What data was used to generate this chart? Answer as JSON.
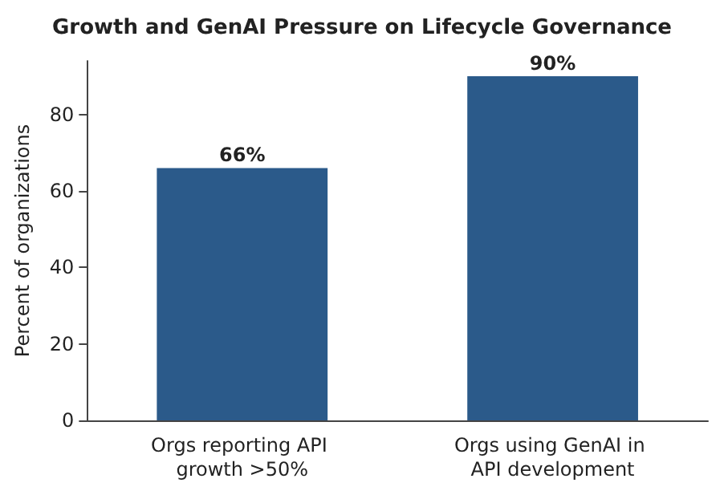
{
  "chart_data": {
    "type": "bar",
    "title": "Growth and GenAI Pressure on Lifecycle Governance",
    "ylabel": "Percent of organizations",
    "categories": [
      "Orgs reporting API growth >50%",
      "Orgs using GenAI in API development"
    ],
    "values": [
      66,
      90
    ],
    "value_labels": [
      "66%",
      "90%"
    ],
    "color": "#2b5a8a",
    "ylim": [
      0,
      94
    ],
    "yticks": [
      0,
      20,
      40,
      60,
      80
    ],
    "grid": false
  }
}
